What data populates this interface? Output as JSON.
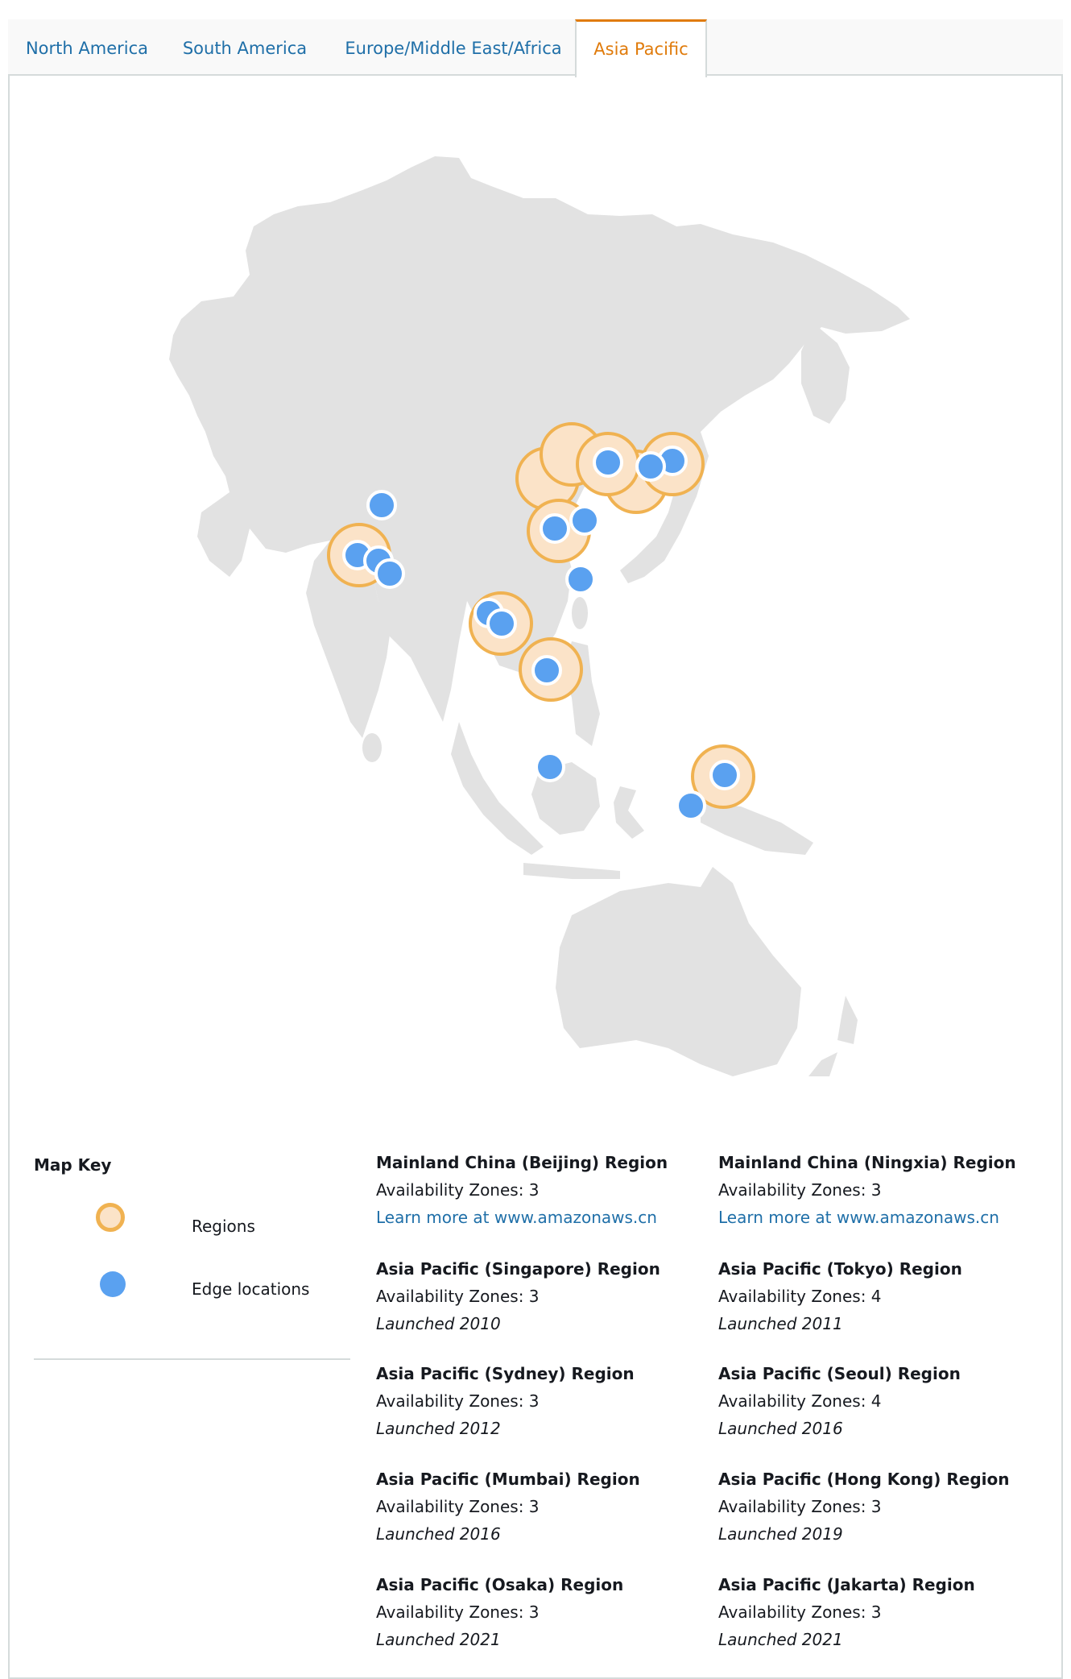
{
  "tabs": [
    {
      "label": "North America",
      "active": false
    },
    {
      "label": "South America",
      "active": false
    },
    {
      "label": "Europe/Middle East/Africa",
      "active": false
    },
    {
      "label": "Asia Pacific",
      "active": true
    }
  ],
  "colors": {
    "link": "#1f6fa8",
    "active_tab": "#e07b0b",
    "region_fill": "#fbe3c8",
    "region_ring": "#f0b251",
    "edge_location": "#5aa1f0",
    "land": "#e2e2e2"
  },
  "legend": {
    "title": "Map Key",
    "items": [
      {
        "label": "Regions",
        "icon": "region-circle-icon"
      },
      {
        "label": "Edge locations",
        "icon": "edge-location-dot-icon"
      }
    ]
  },
  "regions": [
    {
      "name": "Mainland China (Beijing) Region",
      "az": "Availability Zones: 3",
      "sub": "Learn more at www.amazonaws.cn",
      "sub_type": "link"
    },
    {
      "name": "Mainland China (Ningxia) Region",
      "az": "Availability Zones: 3",
      "sub": "Learn more at www.amazonaws.cn",
      "sub_type": "link"
    },
    {
      "name": "Asia Pacific (Singapore) Region",
      "az": "Availability Zones: 3",
      "sub": "Launched 2010",
      "sub_type": "launch"
    },
    {
      "name": "Asia Pacific (Tokyo) Region",
      "az": "Availability Zones: 4",
      "sub": "Launched 2011",
      "sub_type": "launch"
    },
    {
      "name": "Asia Pacific (Sydney) Region",
      "az": "Availability Zones: 3",
      "sub": "Launched 2012",
      "sub_type": "launch"
    },
    {
      "name": "Asia Pacific (Seoul) Region",
      "az": "Availability Zones: 4",
      "sub": "Launched 2016",
      "sub_type": "launch"
    },
    {
      "name": "Asia Pacific (Mumbai) Region",
      "az": "Availability Zones: 3",
      "sub": "Launched 2016",
      "sub_type": "launch"
    },
    {
      "name": "Asia Pacific (Hong Kong) Region",
      "az": "Availability Zones: 3",
      "sub": "Launched 2019",
      "sub_type": "launch"
    },
    {
      "name": "Asia Pacific (Osaka) Region",
      "az": "Availability Zones: 3",
      "sub": "Launched 2021",
      "sub_type": "launch"
    },
    {
      "name": "Asia Pacific (Jakarta) Region",
      "az": "Availability Zones: 3",
      "sub": "Launched 2021",
      "sub_type": "launch"
    }
  ]
}
